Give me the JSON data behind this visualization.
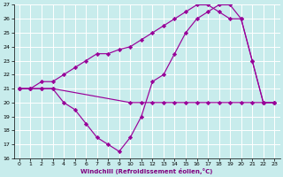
{
  "xlabel": "Windchill (Refroidissement éolien,°C)",
  "xlim": [
    -0.5,
    23.5
  ],
  "ylim": [
    16,
    27
  ],
  "yticks": [
    16,
    17,
    18,
    19,
    20,
    21,
    22,
    23,
    24,
    25,
    26,
    27
  ],
  "xticks": [
    0,
    1,
    2,
    3,
    4,
    5,
    6,
    7,
    8,
    9,
    10,
    11,
    12,
    13,
    14,
    15,
    16,
    17,
    18,
    19,
    20,
    21,
    22,
    23
  ],
  "bg_color": "#c8ecec",
  "line_color": "#990099",
  "series": [
    {
      "x": [
        0,
        1,
        2,
        3,
        10,
        11,
        12,
        13,
        14,
        15,
        16,
        17,
        18,
        19,
        20,
        21,
        22,
        23
      ],
      "y": [
        21,
        21,
        21,
        21,
        20,
        20,
        20,
        20,
        20,
        20,
        20,
        20,
        20,
        20,
        20,
        20,
        20,
        20
      ]
    },
    {
      "x": [
        0,
        1,
        2,
        3,
        4,
        5,
        6,
        7,
        8,
        9,
        10,
        11,
        12,
        13,
        14,
        15,
        16,
        17,
        18,
        19,
        20,
        21,
        22,
        23
      ],
      "y": [
        21,
        21,
        21,
        21,
        20,
        19.5,
        18.5,
        17.5,
        17,
        16.5,
        17.5,
        19,
        21.5,
        22,
        23.5,
        25,
        26,
        26.5,
        27,
        27,
        26,
        23,
        20,
        20
      ]
    },
    {
      "x": [
        0,
        1,
        2,
        3,
        4,
        5,
        6,
        7,
        8,
        9,
        10,
        11,
        12,
        13,
        14,
        15,
        16,
        17,
        18,
        19,
        20,
        21,
        22,
        23
      ],
      "y": [
        21,
        21,
        21.5,
        21.5,
        22,
        22.5,
        23,
        23.5,
        23.5,
        23.8,
        24,
        24.5,
        25,
        25.5,
        26,
        26.5,
        27,
        27,
        26.5,
        26,
        26,
        23,
        20,
        20
      ]
    }
  ]
}
